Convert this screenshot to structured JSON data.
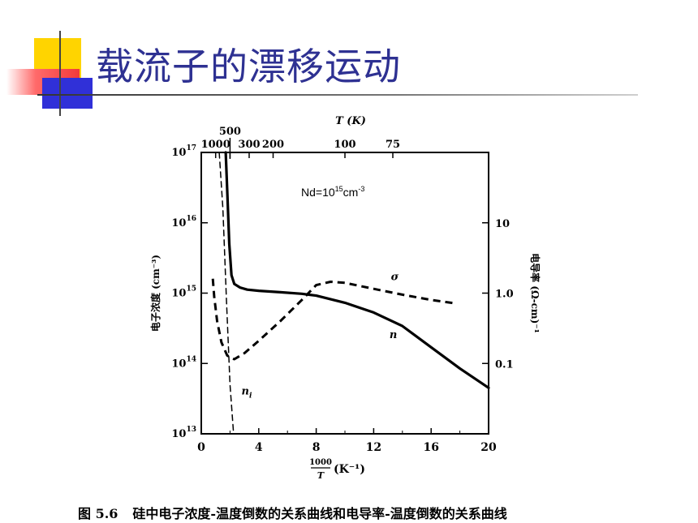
{
  "slide": {
    "title": "载流子的漂移运动",
    "accent_color": "#2e3192",
    "caption_label": "图 5.6",
    "caption": "硅中电子浓度-温度倒数的关系曲线和电导率-温度倒数的关系曲线"
  },
  "chart_data": {
    "type": "line",
    "title": "",
    "annotation": {
      "prefix": "Nd=10",
      "exp": "15",
      "unit": "cm",
      "unit_exp": "-3"
    },
    "x_axis": {
      "label_num": "1000",
      "label_den": "T",
      "label_unit": "(K⁻¹)",
      "range": [
        0,
        20
      ],
      "ticks": [
        "0",
        "4",
        "8",
        "12",
        "16",
        "20"
      ]
    },
    "top_axis": {
      "label": "T (K)",
      "ticks": [
        {
          "label": "1000",
          "x": 1
        },
        {
          "label": "500",
          "x": 2
        },
        {
          "label": "300",
          "x": 3.333
        },
        {
          "label": "200",
          "x": 5
        },
        {
          "label": "100",
          "x": 10
        },
        {
          "label": "75",
          "x": 13.333
        }
      ]
    },
    "y_left": {
      "label": "电子浓度 (cm⁻³)",
      "scale": "log",
      "range": [
        10000000000000.0,
        1e+17
      ],
      "ticks": [
        {
          "base": "10",
          "exp": "13",
          "v": 10000000000000.0
        },
        {
          "base": "10",
          "exp": "14",
          "v": 100000000000000.0
        },
        {
          "base": "10",
          "exp": "15",
          "v": 1000000000000000.0
        },
        {
          "base": "10",
          "exp": "16",
          "v": 1e+16
        },
        {
          "base": "10",
          "exp": "17",
          "v": 1e+17
        }
      ]
    },
    "y_right": {
      "label": "电导率 (Ω-cm)⁻¹",
      "scale": "log",
      "range": [
        0.01,
        100
      ],
      "ticks": [
        {
          "label": "10",
          "v": 10
        },
        {
          "label": "1.0",
          "v": 1
        },
        {
          "label": "0.1",
          "v": 0.1
        }
      ]
    },
    "series": [
      {
        "name": "n",
        "axis": "left",
        "style": "solid",
        "x": [
          1.7,
          1.8,
          1.95,
          2.1,
          2.3,
          2.7,
          3.2,
          4,
          5.5,
          7,
          8,
          10,
          12,
          14,
          16,
          18,
          20
        ],
        "y": [
          1e+17,
          3e+16,
          5000000000000000.0,
          1800000000000000.0,
          1350000000000000.0,
          1200000000000000.0,
          1120000000000000.0,
          1080000000000000.0,
          1030000000000000.0,
          980000000000000.0,
          920000000000000.0,
          730000000000000.0,
          530000000000000.0,
          340000000000000.0,
          170000000000000.0,
          85000000000000.0,
          45000000000000.0
        ]
      },
      {
        "name": "σ",
        "axis": "right",
        "style": "dashed",
        "x": [
          0.8,
          0.9,
          1.1,
          1.4,
          1.8,
          2.3,
          3,
          4,
          5.5,
          7,
          8,
          9,
          10,
          12,
          14,
          16,
          17.6
        ],
        "y": [
          1.6,
          0.9,
          0.4,
          0.2,
          0.13,
          0.115,
          0.14,
          0.21,
          0.4,
          0.8,
          1.3,
          1.45,
          1.4,
          1.15,
          0.95,
          0.8,
          0.72
        ]
      },
      {
        "name": "nᵢ",
        "axis": "left",
        "style": "dashed",
        "x": [
          1.25,
          1.5,
          1.75,
          2.0,
          2.25
        ],
        "y": [
          1e+17,
          1.6e+16,
          800000000000000.0,
          50000000000000.0,
          10000000000000.0
        ]
      }
    ],
    "series_labels": [
      {
        "text": "n",
        "x": 13.1,
        "y": 230000000000000.0,
        "axis": "left"
      },
      {
        "text": "σ",
        "x": 13.2,
        "y": 1.52,
        "axis": "right"
      },
      {
        "text": "n",
        "sub": "i",
        "x": 2.8,
        "y": 36000000000000.0,
        "axis": "left"
      }
    ]
  }
}
